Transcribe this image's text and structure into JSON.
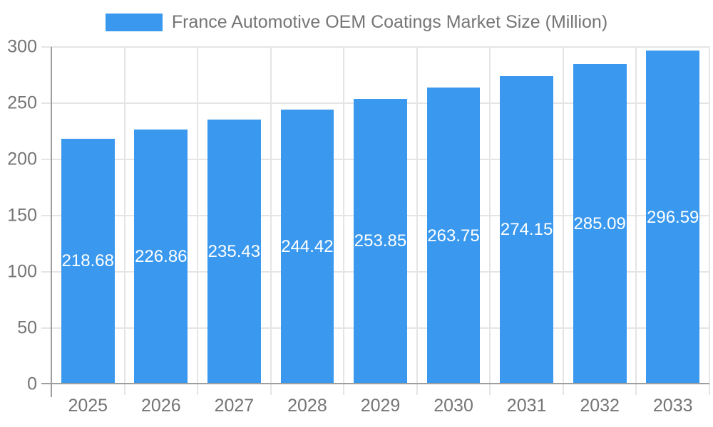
{
  "legend": {
    "label": "France Automotive OEM Coatings Market Size (Million)"
  },
  "colors": {
    "bar": "#3a99ee",
    "grid": "#e5e5e5",
    "axis": "#9e9e9e",
    "text": "#757575",
    "value_label": "#ffffff",
    "background": "#ffffff"
  },
  "chart_data": {
    "type": "bar",
    "title": "France Automotive OEM Coatings Market Size (Million)",
    "categories": [
      "2025",
      "2026",
      "2027",
      "2028",
      "2029",
      "2030",
      "2031",
      "2032",
      "2033"
    ],
    "values": [
      218.68,
      226.86,
      235.43,
      244.42,
      253.85,
      263.75,
      274.15,
      285.09,
      296.59
    ],
    "value_labels": [
      "218.68",
      "226.86",
      "235.43",
      "244.42",
      "253.85",
      "263.75",
      "274.15",
      "285.09",
      "296.59"
    ],
    "xlabel": "",
    "ylabel": "",
    "ylim": [
      0,
      300
    ],
    "yticks": [
      0,
      50,
      100,
      150,
      200,
      250,
      300
    ],
    "grid": true,
    "legend_position": "top-center",
    "value_label_position": "inside-center",
    "bar_width_fraction": 0.73
  }
}
